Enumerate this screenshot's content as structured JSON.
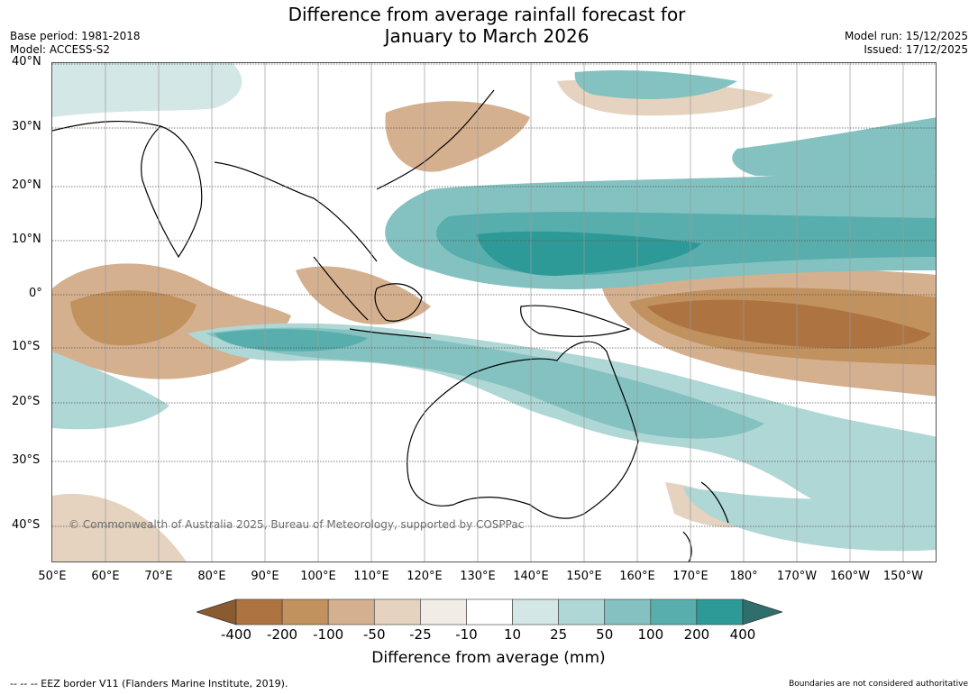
{
  "title": {
    "line1": "Difference from average rainfall forecast for",
    "line2": "January to March 2026"
  },
  "meta_left": {
    "base_period": "Base period: 1981-2018",
    "model": "Model: ACCESS-S2"
  },
  "meta_right": {
    "model_run": "Model run: 15/12/2025",
    "issued": "Issued: 17/12/2025"
  },
  "map": {
    "lat_labels": [
      "40°N",
      "30°N",
      "20°N",
      "10°N",
      "0°",
      "10°S",
      "20°S",
      "30°S",
      "40°S"
    ],
    "lon_labels": [
      "50°E",
      "60°E",
      "70°E",
      "80°E",
      "90°E",
      "100°E",
      "110°E",
      "120°E",
      "130°E",
      "140°E",
      "150°E",
      "160°E",
      "170°E",
      "180°",
      "170°W",
      "160°W",
      "150°W"
    ],
    "copyright": "© Commonwealth of Australia 2025, Bureau of Meteorology, supported by COSPPac"
  },
  "legend": {
    "ticks": [
      "-400",
      "-200",
      "-100",
      "-50",
      "-25",
      "-10",
      "10",
      "25",
      "50",
      "100",
      "200",
      "400"
    ],
    "colors": [
      "#8a5a30",
      "#ad7442",
      "#c1915e",
      "#d4b08f",
      "#e5d3bf",
      "#f1ece6",
      "#ffffff",
      "#d3e7e6",
      "#afd7d5",
      "#83c2c0",
      "#58aeac",
      "#2e9a97",
      "#2e6f6c"
    ],
    "label": "Difference from average (mm)"
  },
  "footer": {
    "eez": "--  --  -- EEZ border V11 (Flanders Marine Institute, 2019).",
    "note": "Boundaries are not considered authoritative"
  }
}
